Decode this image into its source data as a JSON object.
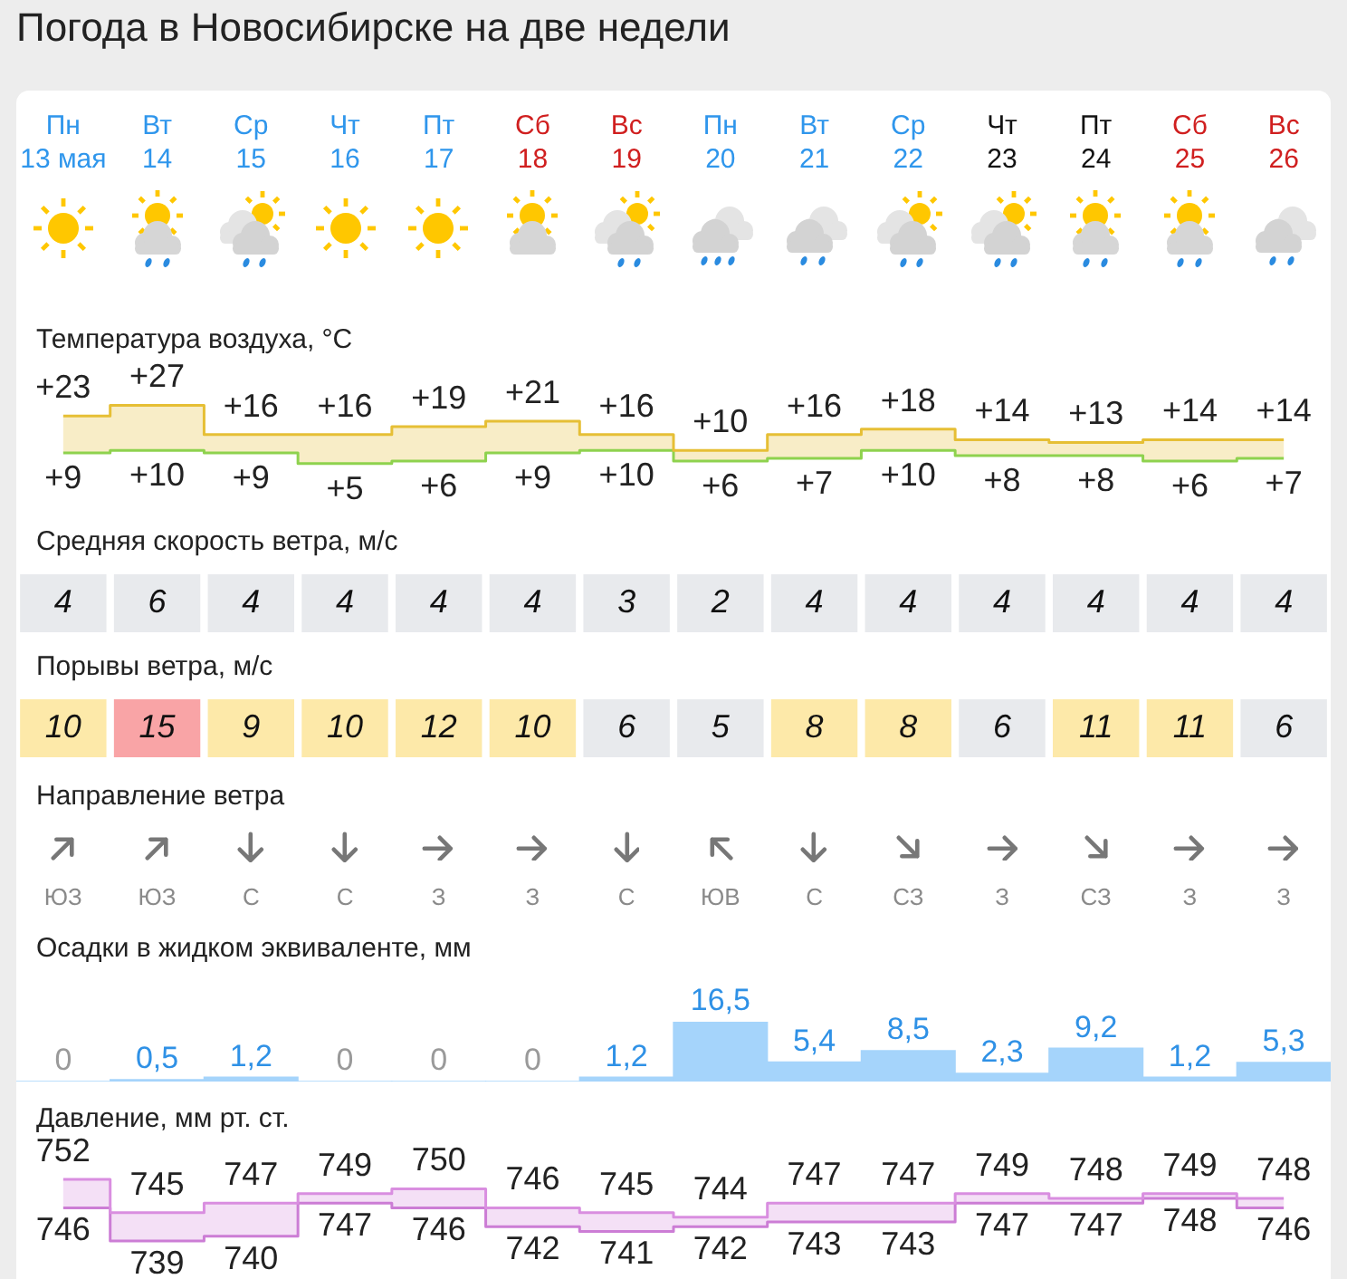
{
  "chart_data": [
    {
      "type": "step",
      "title": "Погода в Новосибирске на две недели",
      "ylabel": "Температура воздуха, °C",
      "categories": [
        "Пн\n13 мая",
        "Вт\n14",
        "Ср\n15",
        "Чт\n16",
        "Пт\n17",
        "Сб\n18",
        "Вс\n19",
        "Пн\n20",
        "Вт\n21",
        "Ср\n22",
        "Чт\n23",
        "Пт\n24",
        "Сб\n25",
        "Вс\n26"
      ],
      "series": [
        {
          "color": "#e6bf35",
          "values": [
            23,
            27,
            16,
            16,
            19,
            21,
            16,
            10,
            16,
            18,
            14,
            13,
            14,
            14
          ],
          "value_labels": [
            "+23",
            "+27",
            "+16",
            "+16",
            "+19",
            "+21",
            "+16",
            "+10",
            "+16",
            "+18",
            "+14",
            "+13",
            "+14",
            "+14"
          ],
          "upper": [
            23,
            27,
            16,
            16,
            19,
            21,
            16,
            10,
            16,
            18,
            14,
            13,
            14,
            14
          ],
          "lower": [
            9,
            10,
            9,
            5,
            6,
            9,
            10,
            6,
            7,
            10,
            8,
            8,
            6,
            7
          ]
        },
        {
          "color": "#8ed24e",
          "values": [
            9,
            10,
            9,
            5,
            6,
            9,
            10,
            6,
            7,
            10,
            8,
            8,
            6,
            7
          ],
          "value_labels": [
            "+9",
            "+10",
            "+9",
            "+5",
            "+6",
            "+9",
            "+10",
            "+6",
            "+7",
            "+10",
            "+8",
            "+8",
            "+6",
            "+7"
          ]
        }
      ],
      "tick_labels": "x"
    },
    {
      "type": "heatmap",
      "categories": [
        null,
        null,
        null,
        null,
        null,
        null,
        null,
        null,
        null,
        null,
        null,
        null,
        null,
        null
      ],
      "y_categories": [
        "Средняя скорость ветра, м/с",
        "Порывы ветра, м/с"
      ],
      "cells": [
        [
          4,
          6,
          4,
          4,
          4,
          4,
          3,
          2,
          4,
          4,
          4,
          4,
          4,
          4
        ],
        [
          10,
          15,
          9,
          10,
          12,
          10,
          6,
          5,
          8,
          8,
          6,
          11,
          11,
          6
        ]
      ],
      "data_labels": true
    },
    {
      "type": "other",
      "ylabel": "Направление ветра",
      "annotations": [
        "ЮЗ",
        "ЮЗ",
        "С",
        "С",
        "З",
        "З",
        "С",
        "ЮВ",
        "С",
        "СЗ",
        "З",
        "СЗ",
        "З",
        "З"
      ]
    },
    {
      "type": "bar",
      "ylabel": "Осадки в жидком эквиваленте, мм",
      "categories": [
        null,
        null,
        null,
        null,
        null,
        null,
        null,
        null,
        null,
        null,
        null,
        null,
        null,
        null
      ],
      "values": [
        0,
        0.5,
        1.2,
        0,
        0,
        0,
        1.2,
        16.5,
        5.4,
        8.5,
        2.3,
        9.2,
        1.2,
        5.3
      ],
      "value_labels": [
        "0",
        "0,5",
        "1,2",
        "0",
        "0",
        "0",
        "1,2",
        "16,5",
        "5,4",
        "8,5",
        "2,3",
        "9,2",
        "1,2",
        "5,3"
      ],
      "color": "#a5d4fb"
    },
    {
      "type": "step",
      "ylabel": "Давление, мм рт. ст.",
      "categories": [
        null,
        null,
        null,
        null,
        null,
        null,
        null,
        null,
        null,
        null,
        null,
        null,
        null,
        null
      ],
      "series": [
        {
          "color": "#d98ee0",
          "values": [
            752,
            745,
            747,
            749,
            750,
            746,
            745,
            744,
            747,
            747,
            749,
            748,
            749,
            748
          ],
          "upper": [
            752,
            745,
            747,
            749,
            750,
            746,
            745,
            744,
            747,
            747,
            749,
            748,
            749,
            748
          ],
          "lower": [
            746,
            739,
            740,
            747,
            746,
            742,
            741,
            742,
            743,
            743,
            747,
            747,
            748,
            746
          ]
        },
        {
          "color": "#cc7dd5",
          "values": [
            746,
            739,
            740,
            747,
            746,
            742,
            741,
            742,
            743,
            743,
            747,
            747,
            748,
            746
          ]
        }
      ],
      "data_labels": true
    }
  ]
}
